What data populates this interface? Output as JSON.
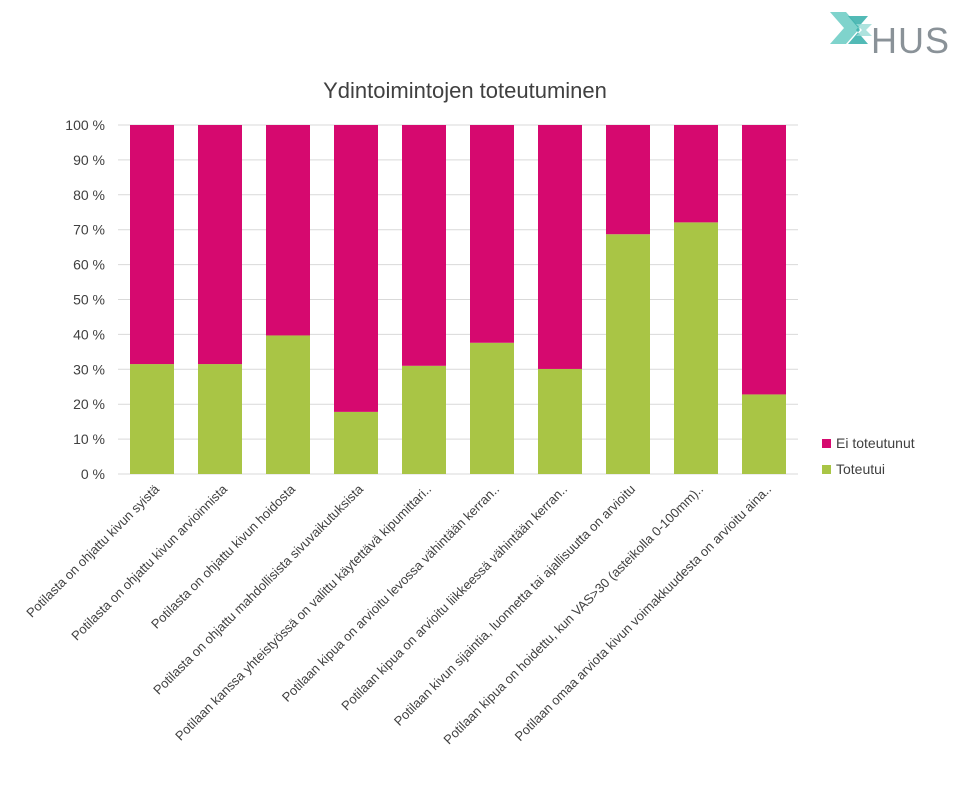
{
  "logo": {
    "text": "HUS",
    "colors": {
      "teal": "#63c9c1",
      "teal_dark": "#2fa8a5",
      "text": "#8a9298"
    }
  },
  "chart_data": {
    "type": "bar",
    "stacked": true,
    "title": "Ydintoimintojen toteutuminen",
    "xlabel": "",
    "ylabel": "",
    "ylim": [
      0,
      100
    ],
    "yticks": [
      "0 %",
      "10 %",
      "20 %",
      "30 %",
      "40 %",
      "50 %",
      "60 %",
      "70 %",
      "80 %",
      "90 %",
      "100 %"
    ],
    "grid": true,
    "legend_position": "right",
    "categories": [
      "Potilasta on ohjattu kivun syistä",
      "Potilasta on ohjattu kivun arvioinnista",
      "Potilasta on ohjattu kivun hoidosta",
      "Potilasta on ohjattu mahdollisista sivuvaikutuksista",
      "Potilaan kanssa yhteistyössä on valittu käytettävä kipumittari..",
      "Potilaan kipua on arvioitu levossa vähintään kerran..",
      "Potilaan kipua on arvioitu liikkeessä vähintään kerran..",
      "Potilaan kivun sijaintia, luonnetta tai ajallisuutta on arvioitu",
      "Potilaan kipua on hoidettu, kun VAS>30 (asteikolla 0-100mm)..",
      "Potilaan omaa arviota kivun voimakkuudesta on arvioitu aina.."
    ],
    "series": [
      {
        "name": "Toteutui",
        "color": "#a9c545",
        "values": [
          31.5,
          31.5,
          39.7,
          17.8,
          31,
          37.6,
          30.1,
          68.7,
          72.1,
          22.8
        ]
      },
      {
        "name": "Ei toteutunut",
        "color": "#d6096f",
        "values": [
          68.5,
          68.5,
          60.3,
          82.2,
          69,
          62.4,
          69.9,
          31.3,
          27.9,
          77.2
        ]
      }
    ],
    "legend": [
      "Ei toteutunut",
      "Toteutui"
    ]
  }
}
